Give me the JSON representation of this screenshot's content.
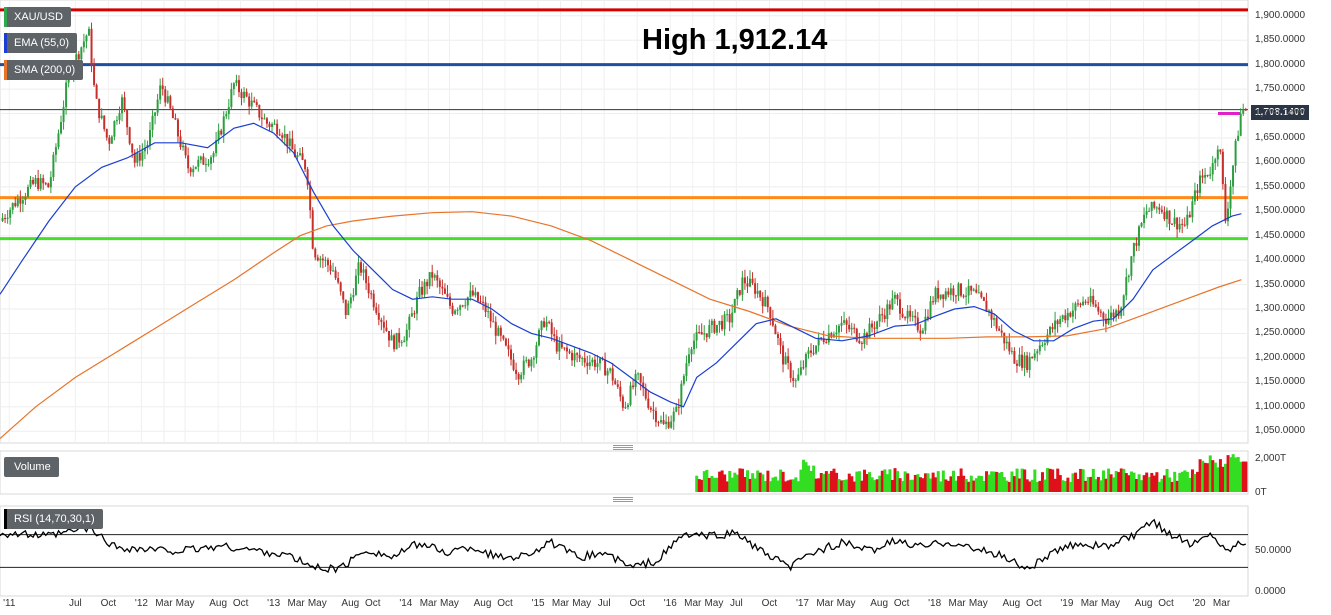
{
  "chart_data": {
    "type": "candlestick",
    "title": "High 1,912.14",
    "symbol": "XAU/USD",
    "current_price_label": "1,708.1400",
    "legend": [
      "XAU/USD",
      "EMA (55,0)",
      "SMA (200,0)"
    ],
    "price_ticks": [
      "1,900.0000",
      "1,850.0000",
      "1,800.0000",
      "1,750.0000",
      "1,700.0000",
      "1,650.0000",
      "1,600.0000",
      "1,550.0000",
      "1,500.0000",
      "1,450.0000",
      "1,400.0000",
      "1,350.0000",
      "1,300.0000",
      "1,250.0000",
      "1,200.0000",
      "1,150.0000",
      "1,100.0000",
      "1,050.0000"
    ],
    "ylim": [
      1032,
      1922
    ],
    "x_ticks": [
      "'11",
      "Jul",
      "Oct",
      "'12",
      "Mar",
      "May",
      "Aug",
      "Oct",
      "'13",
      "Mar",
      "May",
      "Aug",
      "Oct",
      "'14",
      "Mar",
      "May",
      "Aug",
      "Oct",
      "'15",
      "Mar",
      "May",
      "Jul",
      "Oct",
      "'16",
      "Mar",
      "May",
      "Jul",
      "Oct",
      "'17",
      "Mar",
      "May",
      "Aug",
      "Oct",
      "'18",
      "Mar",
      "May",
      "Aug",
      "Oct",
      "'19",
      "Mar",
      "May",
      "Aug",
      "Oct",
      "'20",
      "Mar"
    ],
    "x_tick_dates": [
      2011.0,
      2011.5,
      2011.75,
      2012.0,
      2012.17,
      2012.33,
      2012.58,
      2012.75,
      2013.0,
      2013.17,
      2013.33,
      2013.58,
      2013.75,
      2014.0,
      2014.17,
      2014.33,
      2014.58,
      2014.75,
      2015.0,
      2015.17,
      2015.33,
      2015.5,
      2015.75,
      2016.0,
      2016.17,
      2016.33,
      2016.5,
      2016.75,
      2017.0,
      2017.17,
      2017.33,
      2017.58,
      2017.75,
      2018.0,
      2018.17,
      2018.33,
      2018.58,
      2018.75,
      2019.0,
      2019.17,
      2019.33,
      2019.58,
      2019.75,
      2020.0,
      2020.17
    ],
    "xlim": [
      2010.93,
      2020.37
    ],
    "price_path": [
      [
        2010.93,
        1480
      ],
      [
        2011.05,
        1520
      ],
      [
        2011.2,
        1560
      ],
      [
        2011.3,
        1550
      ],
      [
        2011.45,
        1780
      ],
      [
        2011.6,
        1870
      ],
      [
        2011.65,
        1730
      ],
      [
        2011.75,
        1640
      ],
      [
        2011.85,
        1730
      ],
      [
        2011.95,
        1600
      ],
      [
        2012.05,
        1640
      ],
      [
        2012.15,
        1760
      ],
      [
        2012.25,
        1680
      ],
      [
        2012.35,
        1590
      ],
      [
        2012.45,
        1600
      ],
      [
        2012.55,
        1620
      ],
      [
        2012.7,
        1760
      ],
      [
        2012.8,
        1730
      ],
      [
        2012.95,
        1680
      ],
      [
        2013.05,
        1670
      ],
      [
        2013.15,
        1620
      ],
      [
        2013.25,
        1590
      ],
      [
        2013.3,
        1420
      ],
      [
        2013.45,
        1380
      ],
      [
        2013.55,
        1290
      ],
      [
        2013.65,
        1390
      ],
      [
        2013.75,
        1320
      ],
      [
        2013.9,
        1230
      ],
      [
        2014.0,
        1250
      ],
      [
        2014.1,
        1330
      ],
      [
        2014.2,
        1370
      ],
      [
        2014.35,
        1300
      ],
      [
        2014.5,
        1330
      ],
      [
        2014.6,
        1300
      ],
      [
        2014.75,
        1220
      ],
      [
        2014.85,
        1170
      ],
      [
        2014.95,
        1200
      ],
      [
        2015.05,
        1280
      ],
      [
        2015.15,
        1220
      ],
      [
        2015.3,
        1200
      ],
      [
        2015.45,
        1190
      ],
      [
        2015.55,
        1170
      ],
      [
        2015.65,
        1100
      ],
      [
        2015.75,
        1160
      ],
      [
        2015.85,
        1100
      ],
      [
        2015.95,
        1060
      ],
      [
        2016.05,
        1090
      ],
      [
        2016.15,
        1230
      ],
      [
        2016.3,
        1260
      ],
      [
        2016.45,
        1280
      ],
      [
        2016.55,
        1360
      ],
      [
        2016.65,
        1340
      ],
      [
        2016.75,
        1300
      ],
      [
        2016.85,
        1200
      ],
      [
        2016.95,
        1150
      ],
      [
        2017.05,
        1210
      ],
      [
        2017.15,
        1240
      ],
      [
        2017.3,
        1270
      ],
      [
        2017.45,
        1240
      ],
      [
        2017.55,
        1270
      ],
      [
        2017.7,
        1320
      ],
      [
        2017.8,
        1280
      ],
      [
        2017.9,
        1260
      ],
      [
        2018.0,
        1330
      ],
      [
        2018.15,
        1340
      ],
      [
        2018.3,
        1330
      ],
      [
        2018.4,
        1300
      ],
      [
        2018.5,
        1250
      ],
      [
        2018.6,
        1200
      ],
      [
        2018.7,
        1190
      ],
      [
        2018.8,
        1230
      ],
      [
        2018.95,
        1280
      ],
      [
        2019.05,
        1300
      ],
      [
        2019.15,
        1320
      ],
      [
        2019.3,
        1280
      ],
      [
        2019.4,
        1300
      ],
      [
        2019.5,
        1420
      ],
      [
        2019.6,
        1500
      ],
      [
        2019.7,
        1510
      ],
      [
        2019.8,
        1480
      ],
      [
        2019.9,
        1470
      ],
      [
        2020.0,
        1560
      ],
      [
        2020.1,
        1590
      ],
      [
        2020.15,
        1650
      ],
      [
        2020.2,
        1480
      ],
      [
        2020.27,
        1620
      ],
      [
        2020.32,
        1708
      ]
    ],
    "ema_path": [
      [
        2010.93,
        1330
      ],
      [
        2011.1,
        1400
      ],
      [
        2011.3,
        1480
      ],
      [
        2011.5,
        1550
      ],
      [
        2011.7,
        1590
      ],
      [
        2011.9,
        1610
      ],
      [
        2012.1,
        1640
      ],
      [
        2012.3,
        1640
      ],
      [
        2012.5,
        1630
      ],
      [
        2012.7,
        1670
      ],
      [
        2012.85,
        1680
      ],
      [
        2013.0,
        1660
      ],
      [
        2013.15,
        1620
      ],
      [
        2013.3,
        1540
      ],
      [
        2013.45,
        1470
      ],
      [
        2013.6,
        1420
      ],
      [
        2013.75,
        1380
      ],
      [
        2013.9,
        1340
      ],
      [
        2014.05,
        1320
      ],
      [
        2014.2,
        1325
      ],
      [
        2014.35,
        1320
      ],
      [
        2014.5,
        1320
      ],
      [
        2014.65,
        1300
      ],
      [
        2014.8,
        1270
      ],
      [
        2014.95,
        1250
      ],
      [
        2015.1,
        1240
      ],
      [
        2015.25,
        1225
      ],
      [
        2015.4,
        1210
      ],
      [
        2015.55,
        1190
      ],
      [
        2015.7,
        1160
      ],
      [
        2015.85,
        1130
      ],
      [
        2016.0,
        1110
      ],
      [
        2016.1,
        1100
      ],
      [
        2016.2,
        1160
      ],
      [
        2016.35,
        1190
      ],
      [
        2016.5,
        1230
      ],
      [
        2016.65,
        1270
      ],
      [
        2016.8,
        1280
      ],
      [
        2016.95,
        1260
      ],
      [
        2017.1,
        1240
      ],
      [
        2017.3,
        1235
      ],
      [
        2017.5,
        1245
      ],
      [
        2017.7,
        1265
      ],
      [
        2017.85,
        1268
      ],
      [
        2018.0,
        1285
      ],
      [
        2018.15,
        1300
      ],
      [
        2018.3,
        1305
      ],
      [
        2018.45,
        1290
      ],
      [
        2018.6,
        1255
      ],
      [
        2018.75,
        1235
      ],
      [
        2018.9,
        1235
      ],
      [
        2019.05,
        1260
      ],
      [
        2019.2,
        1275
      ],
      [
        2019.35,
        1280
      ],
      [
        2019.5,
        1320
      ],
      [
        2019.65,
        1380
      ],
      [
        2019.8,
        1410
      ],
      [
        2019.95,
        1440
      ],
      [
        2020.1,
        1470
      ],
      [
        2020.25,
        1490
      ],
      [
        2020.32,
        1495
      ]
    ],
    "sma_path": [
      [
        2010.93,
        1035
      ],
      [
        2011.2,
        1100
      ],
      [
        2011.5,
        1160
      ],
      [
        2011.8,
        1210
      ],
      [
        2012.1,
        1260
      ],
      [
        2012.4,
        1310
      ],
      [
        2012.7,
        1360
      ],
      [
        2013.0,
        1415
      ],
      [
        2013.2,
        1450
      ],
      [
        2013.4,
        1470
      ],
      [
        2013.6,
        1480
      ],
      [
        2013.9,
        1490
      ],
      [
        2014.2,
        1497
      ],
      [
        2014.5,
        1499
      ],
      [
        2014.8,
        1490
      ],
      [
        2015.1,
        1470
      ],
      [
        2015.4,
        1440
      ],
      [
        2015.7,
        1400
      ],
      [
        2016.0,
        1360
      ],
      [
        2016.3,
        1320
      ],
      [
        2016.6,
        1295
      ],
      [
        2016.9,
        1265
      ],
      [
        2017.2,
        1245
      ],
      [
        2017.5,
        1240
      ],
      [
        2017.8,
        1240
      ],
      [
        2018.1,
        1240
      ],
      [
        2018.4,
        1243
      ],
      [
        2018.7,
        1243
      ],
      [
        2019.0,
        1245
      ],
      [
        2019.3,
        1260
      ],
      [
        2019.6,
        1290
      ],
      [
        2019.9,
        1320
      ],
      [
        2020.15,
        1345
      ],
      [
        2020.32,
        1360
      ]
    ],
    "horizontal_levels": [
      {
        "name": "high-line",
        "value": 1912,
        "color": "#d40000"
      },
      {
        "name": "resistance-line",
        "value": 1800,
        "color": "#1f4fa0"
      },
      {
        "name": "current-price-line",
        "value": 1708,
        "color": "#2a3545"
      },
      {
        "name": "orange-support-line",
        "value": 1528,
        "color": "#ff8a1a"
      },
      {
        "name": "green-support-line",
        "value": 1444,
        "color": "#44e02a"
      }
    ],
    "volume": {
      "label": "Volume",
      "ticks": [
        "2,000T",
        "0T"
      ],
      "start_date": 2016.2
    },
    "rsi": {
      "label": "RSI (14,70,30,1)",
      "ticks": [
        "50.0000",
        "0.0000"
      ],
      "upper": 70,
      "lower": 30,
      "ylim": [
        0,
        100
      ],
      "path": [
        [
          2010.93,
          72
        ],
        [
          2011.3,
          68
        ],
        [
          2011.6,
          78
        ],
        [
          2011.8,
          55
        ],
        [
          2012.0,
          52
        ],
        [
          2012.3,
          50
        ],
        [
          2012.6,
          56
        ],
        [
          2012.9,
          50
        ],
        [
          2013.1,
          45
        ],
        [
          2013.3,
          30
        ],
        [
          2013.5,
          28
        ],
        [
          2013.7,
          52
        ],
        [
          2013.9,
          42
        ],
        [
          2014.1,
          60
        ],
        [
          2014.3,
          48
        ],
        [
          2014.5,
          55
        ],
        [
          2014.7,
          42
        ],
        [
          2014.9,
          45
        ],
        [
          2015.1,
          60
        ],
        [
          2015.3,
          42
        ],
        [
          2015.5,
          48
        ],
        [
          2015.7,
          30
        ],
        [
          2015.9,
          38
        ],
        [
          2016.1,
          70
        ],
        [
          2016.3,
          68
        ],
        [
          2016.5,
          72
        ],
        [
          2016.7,
          48
        ],
        [
          2016.9,
          30
        ],
        [
          2017.1,
          50
        ],
        [
          2017.3,
          60
        ],
        [
          2017.5,
          50
        ],
        [
          2017.7,
          62
        ],
        [
          2017.9,
          55
        ],
        [
          2018.1,
          62
        ],
        [
          2018.3,
          52
        ],
        [
          2018.5,
          45
        ],
        [
          2018.7,
          28
        ],
        [
          2018.9,
          48
        ],
        [
          2019.1,
          60
        ],
        [
          2019.3,
          55
        ],
        [
          2019.5,
          68
        ],
        [
          2019.65,
          85
        ],
        [
          2019.8,
          70
        ],
        [
          2019.95,
          58
        ],
        [
          2020.1,
          72
        ],
        [
          2020.2,
          50
        ],
        [
          2020.32,
          62
        ]
      ]
    }
  }
}
